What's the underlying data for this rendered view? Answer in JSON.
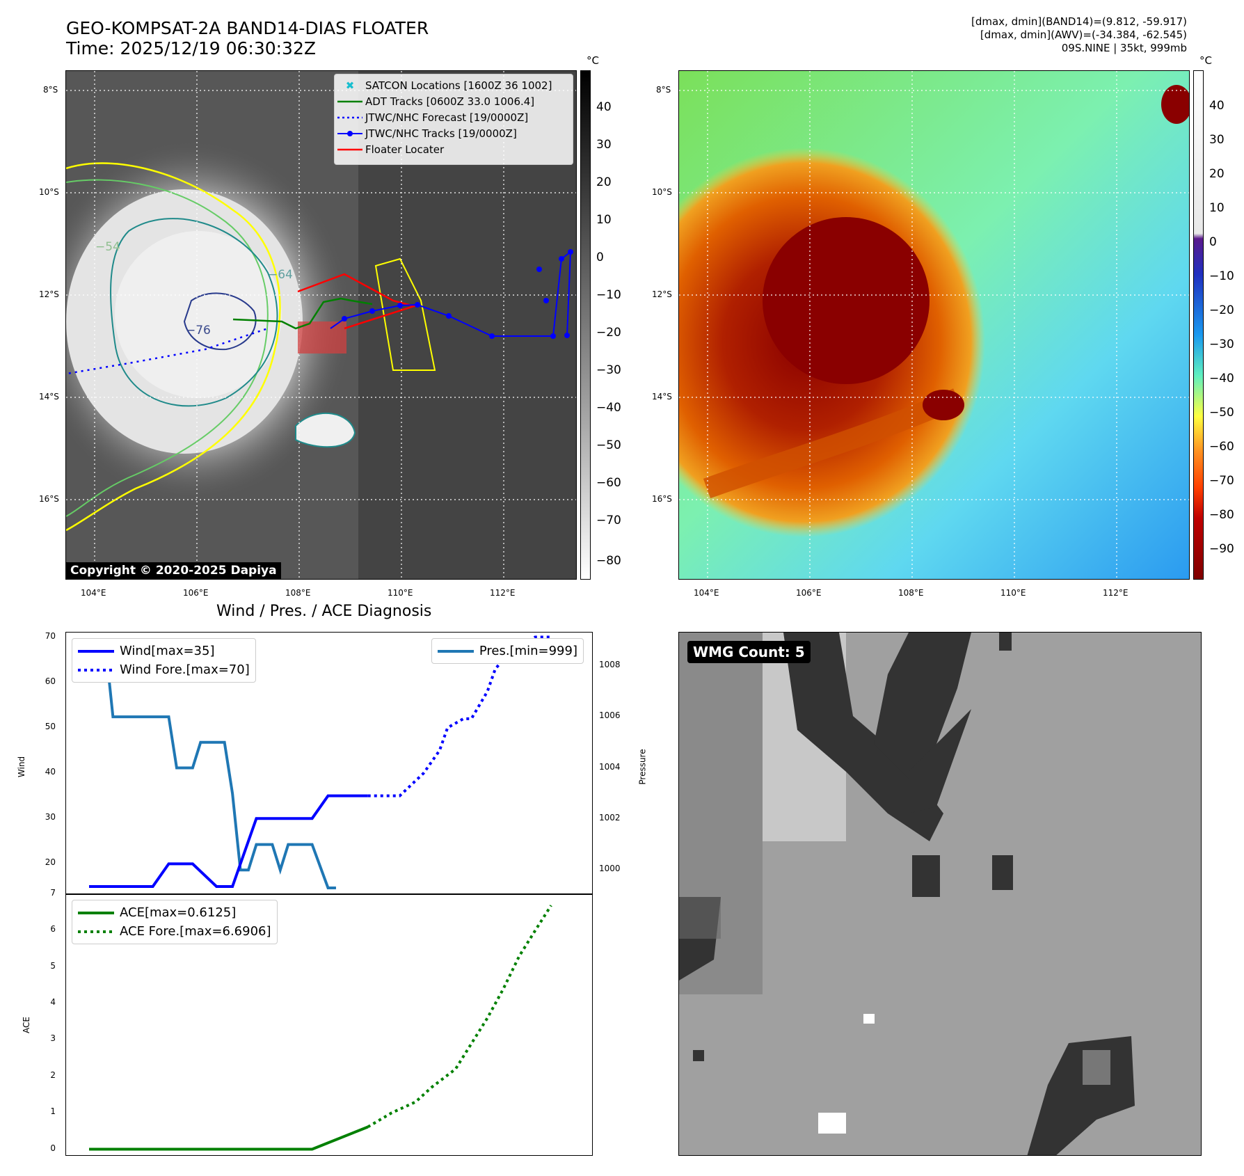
{
  "header": {
    "title_line1": "GEO-KOMPSAT-2A BAND14-DIAS FLOATER",
    "title_line2": "Time: 2025/12/19 06:30:32Z",
    "info_line1": "[dmax, dmin](BAND14)=(9.812, -59.917)",
    "info_line2": "[dmax, dmin](AWV)=(-34.384, -62.545)",
    "info_line3": "09S.NINE | 35kt, 999mb"
  },
  "map_axes": {
    "lat_labels": [
      "8°S",
      "10°S",
      "12°S",
      "14°S",
      "16°S"
    ],
    "lon_labels": [
      "104°E",
      "106°E",
      "108°E",
      "110°E",
      "112°E"
    ]
  },
  "ir_panel": {
    "legend": [
      {
        "label": "SATCON Locations [1600Z 36 1002]",
        "color": "#17becf",
        "style": "x"
      },
      {
        "label": "ADT Tracks [0600Z 33.0 1006.4]",
        "color": "#008000",
        "style": "line"
      },
      {
        "label": "JTWC/NHC Forecast [19/0000Z]",
        "color": "#0000ff",
        "style": "dotted"
      },
      {
        "label": "JTWC/NHC Tracks [19/0000Z]",
        "color": "#0000ff",
        "style": "line-marker"
      },
      {
        "label": "Floater Locater",
        "color": "#ff0000",
        "style": "line"
      }
    ],
    "contour_labels": [
      "−54",
      "−64",
      "−76"
    ],
    "copyright": "Copyright © 2020-2025 Dapiya",
    "colorbar": {
      "unit": "°C",
      "ticks": [
        "40",
        "30",
        "20",
        "10",
        "0",
        "−10",
        "−20",
        "−30",
        "−40",
        "−50",
        "−60",
        "−70",
        "−80"
      ]
    }
  },
  "color_panel": {
    "colorbar": {
      "unit": "°C",
      "ticks": [
        "40",
        "30",
        "20",
        "10",
        "0",
        "−10",
        "−20",
        "−30",
        "−40",
        "−50",
        "−60",
        "−70",
        "−80",
        "−90"
      ]
    }
  },
  "wmg_panel": {
    "label": "WMG Count: 5"
  },
  "chart_data": [
    {
      "type": "line",
      "title": "Wind / Pres. / ACE Diagnosis",
      "ylabel": "Wind",
      "ylabel2": "Pressure",
      "ylim": [
        13,
        71
      ],
      "y2lim": [
        999.0,
        1009.3
      ],
      "yticks": [
        "70",
        "60",
        "50",
        "40",
        "30",
        "20"
      ],
      "y2ticks": [
        "1008",
        "1006",
        "1004",
        "1002",
        "1000"
      ],
      "series": [
        {
          "name": "Wind[max=35]",
          "axis": "wind",
          "style": "solid",
          "color": "#0000ff",
          "x": [
            0,
            8,
            10,
            13,
            16,
            18,
            21,
            22,
            28,
            30,
            35
          ],
          "values": [
            15,
            15,
            20,
            20,
            15,
            15,
            30,
            30,
            30,
            35,
            35
          ]
        },
        {
          "name": "Wind Fore.[max=70]",
          "axis": "wind",
          "style": "dotted",
          "color": "#0000ff",
          "x": [
            35,
            39,
            42,
            44,
            45,
            47,
            48,
            50,
            51,
            53,
            54,
            56,
            58
          ],
          "values": [
            35,
            35,
            40,
            45,
            50,
            52,
            52,
            58,
            63,
            67,
            67,
            70,
            70
          ]
        },
        {
          "name": "Pres.[min=999]",
          "axis": "pressure",
          "style": "solid",
          "color": "#1f77b4",
          "x": [
            0,
            2,
            3,
            10,
            11,
            13,
            14,
            17,
            18,
            19,
            20,
            21,
            23,
            24,
            25,
            26,
            28,
            30,
            31
          ],
          "values": [
            1009,
            1009,
            1006,
            1006,
            1004,
            1004,
            1005,
            1005,
            1003,
            1000,
            1000,
            1001,
            1001,
            1000,
            1001,
            1001,
            1001,
            999.3,
            999.3
          ]
        }
      ]
    },
    {
      "type": "line",
      "ylabel": "ACE",
      "ylim": [
        -0.2,
        7
      ],
      "yticks": [
        "7",
        "6",
        "5",
        "4",
        "3",
        "2",
        "1",
        "0"
      ],
      "series": [
        {
          "name": "ACE[max=0.6125]",
          "style": "solid",
          "color": "#008000",
          "x": [
            0,
            28,
            35
          ],
          "values": [
            0,
            0,
            0.6125
          ]
        },
        {
          "name": "ACE Fore.[max=6.6906]",
          "style": "dotted",
          "color": "#008000",
          "x": [
            35,
            38,
            41,
            43,
            46,
            48,
            50,
            52,
            54,
            56,
            58
          ],
          "values": [
            0.6125,
            1.0,
            1.3,
            1.7,
            2.2,
            2.9,
            3.6,
            4.4,
            5.3,
            6.0,
            6.6906
          ]
        }
      ]
    }
  ]
}
